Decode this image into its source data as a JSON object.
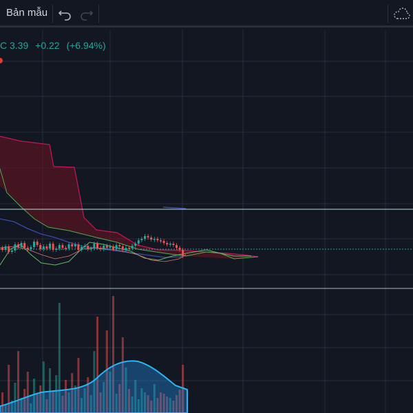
{
  "toolbar": {
    "template_label": "Bản mẫu",
    "undo_icon": "undo-icon",
    "redo_icon": "redo-icon",
    "cloud_icon": "cloud-save-icon"
  },
  "legend": {
    "close_text": "C 3.39",
    "change_text": "+0.22",
    "change_pct_text": "(+6.94%)",
    "up_color": "#26a69a",
    "down_color": "#ef5350"
  },
  "chart_data": {
    "type": "candlestick",
    "indicators": [
      "ichimoku cloud",
      "moving averages",
      "volume"
    ],
    "grid": true,
    "last_change": 0.22,
    "last_change_pct": 6.94
  }
}
